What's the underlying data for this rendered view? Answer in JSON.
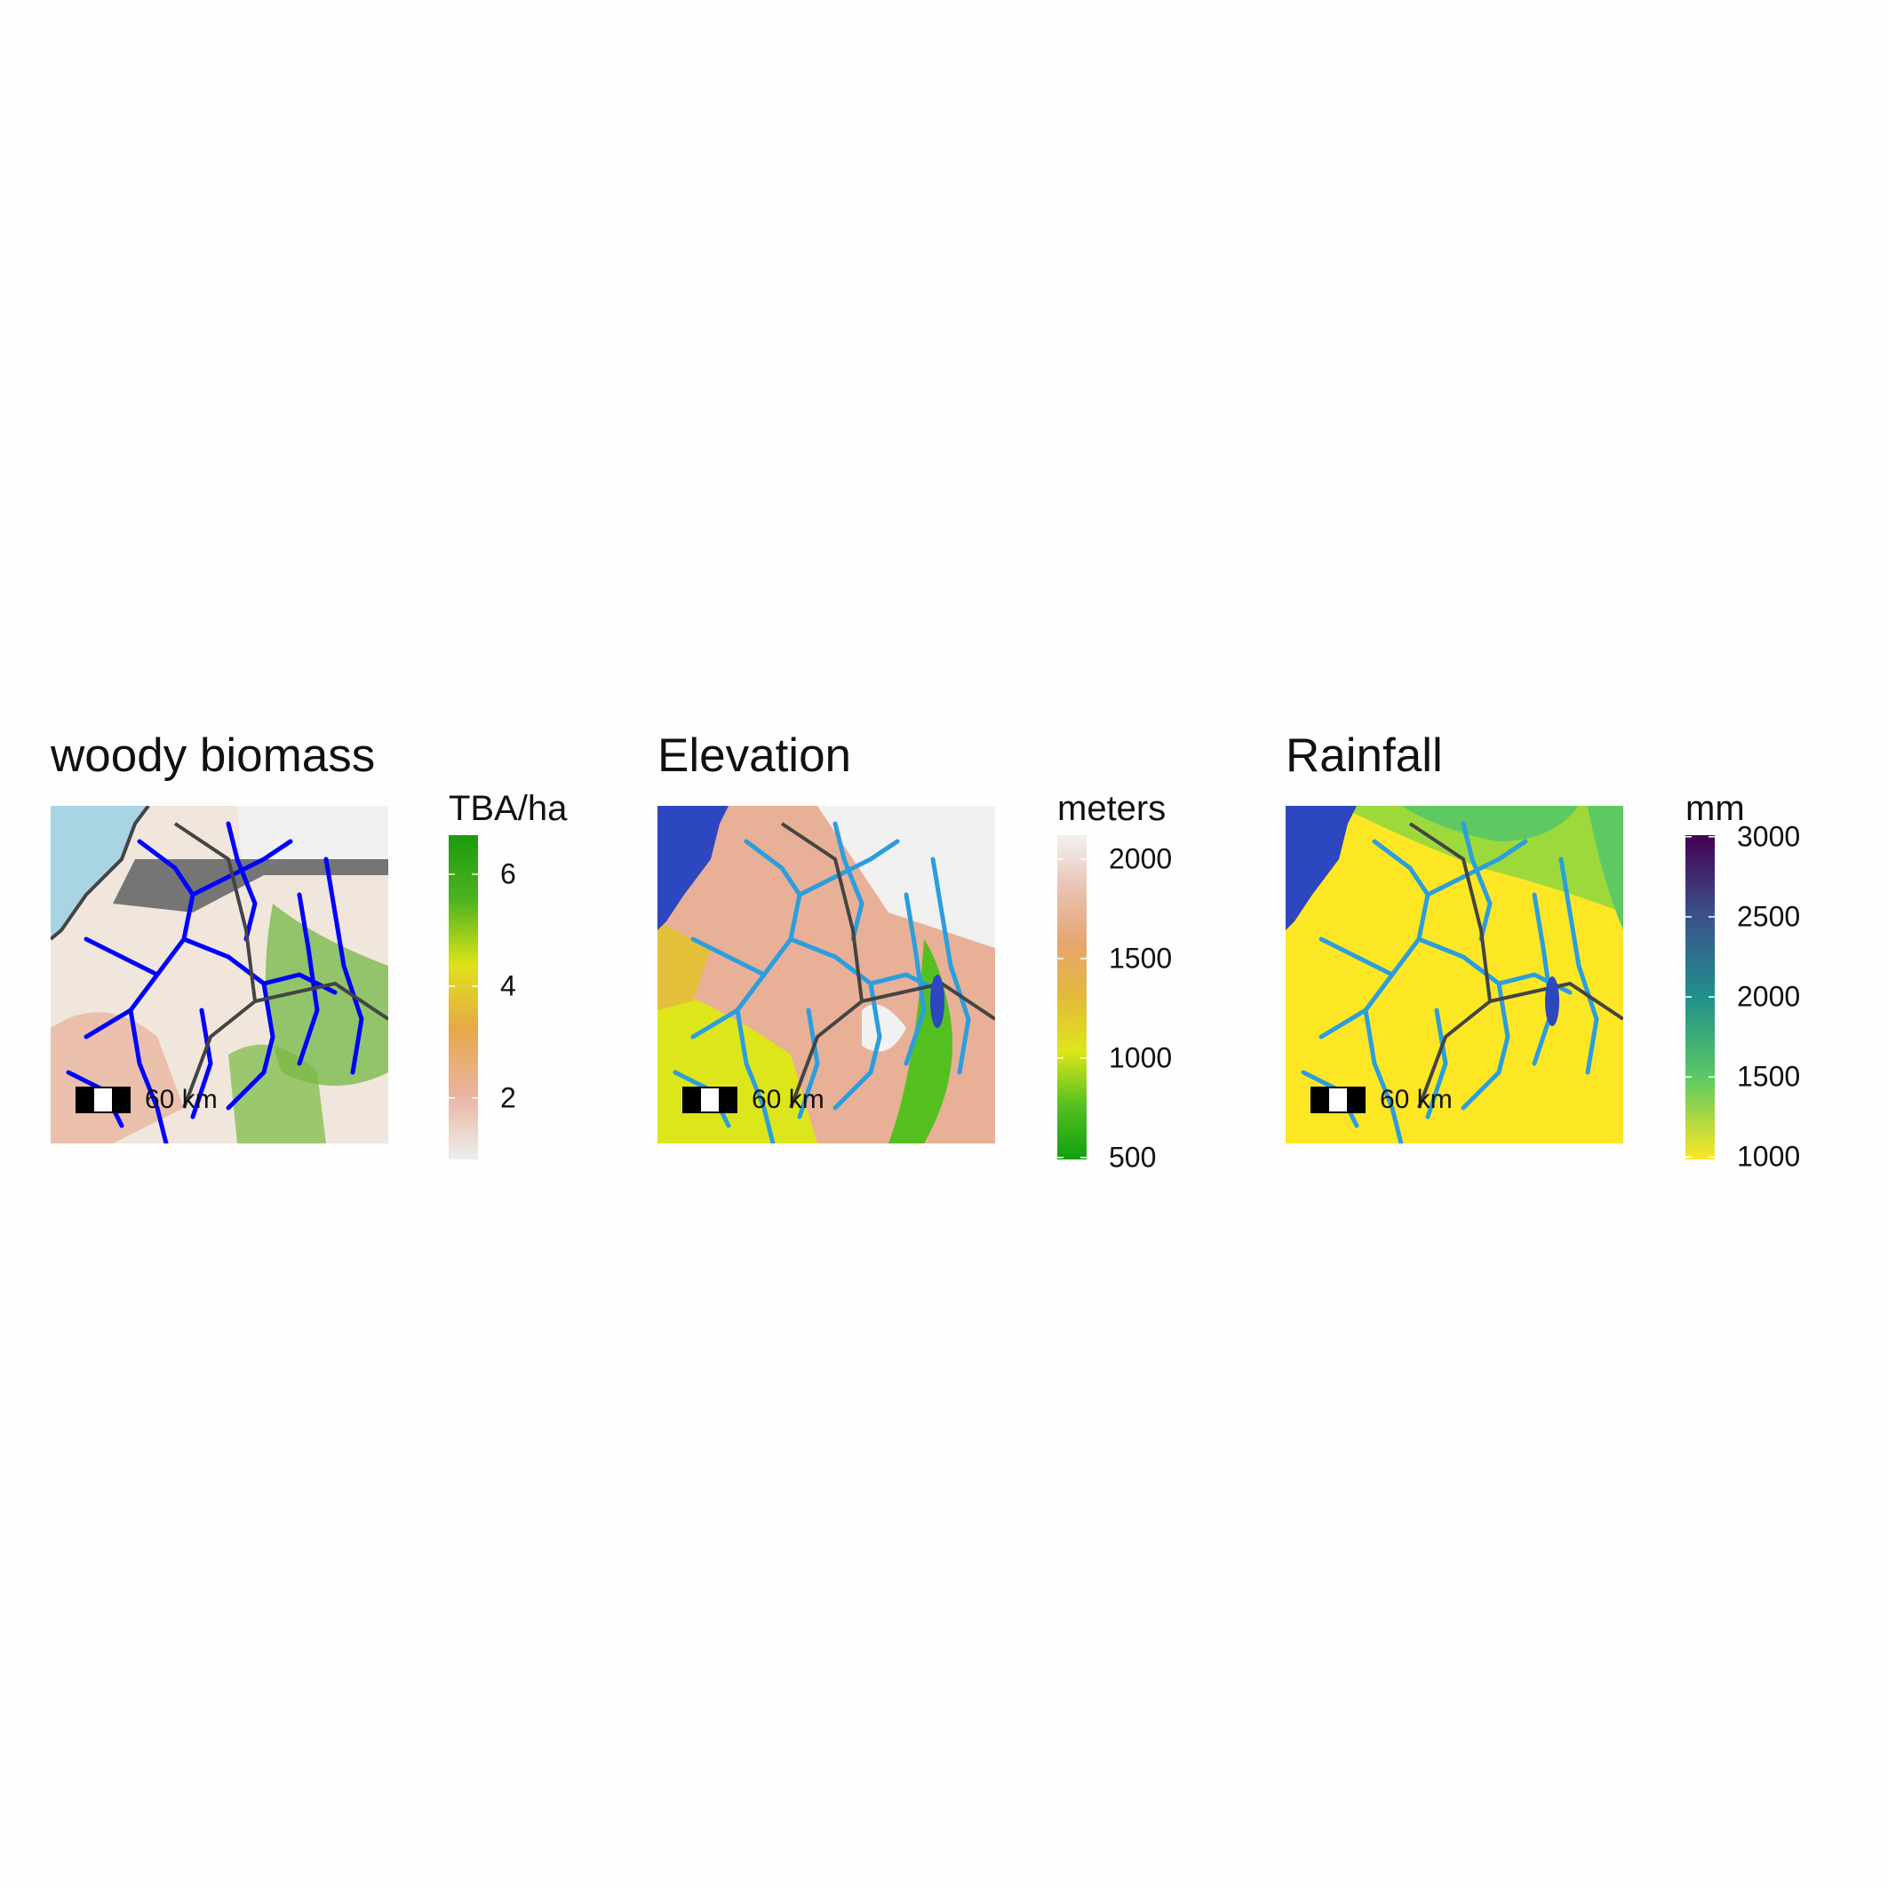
{
  "panels": [
    {
      "title": "woody biomass",
      "scalebar_label": "60 km",
      "legend": {
        "title": "TBA/ha",
        "ticks": [
          "6",
          "4",
          "2"
        ],
        "tick_values": [
          6,
          4,
          2
        ],
        "range": [
          0.9,
          6.7
        ],
        "colors": [
          "#1c9a0e",
          "#4db320",
          "#dfe21a",
          "#e6a84a",
          "#e9b5a0",
          "#ededed"
        ]
      },
      "colors": {
        "water": "#a8d4e4",
        "river": "#0000ff",
        "boundary": "#444444",
        "mask": "#757575"
      }
    },
    {
      "title": "Elevation",
      "scalebar_label": "60 km",
      "legend": {
        "title": "meters",
        "ticks": [
          "2000",
          "1500",
          "1000",
          "500"
        ],
        "tick_values": [
          2000,
          1500,
          1000,
          500
        ],
        "range": [
          490,
          2120
        ],
        "colors": [
          "#f1f1f1",
          "#e9c2b1",
          "#e6a56e",
          "#e4b93a",
          "#dde61a",
          "#54c020",
          "#10a010"
        ]
      },
      "colors": {
        "water": "#2c47c0",
        "river": "#2a9ede",
        "boundary": "#444444"
      }
    },
    {
      "title": "Rainfall",
      "scalebar_label": "60 km",
      "legend": {
        "title": "mm",
        "ticks": [
          "3000",
          "2500",
          "2000",
          "1500",
          "1000"
        ],
        "tick_values": [
          3000,
          2500,
          2000,
          1500,
          1000
        ],
        "range": [
          985,
          3010
        ],
        "colors": [
          "#440154",
          "#3b528b",
          "#21908c",
          "#5ec962",
          "#fde725"
        ]
      },
      "colors": {
        "water": "#2c47c0",
        "river": "#2a9ede",
        "boundary": "#444444"
      }
    }
  ]
}
